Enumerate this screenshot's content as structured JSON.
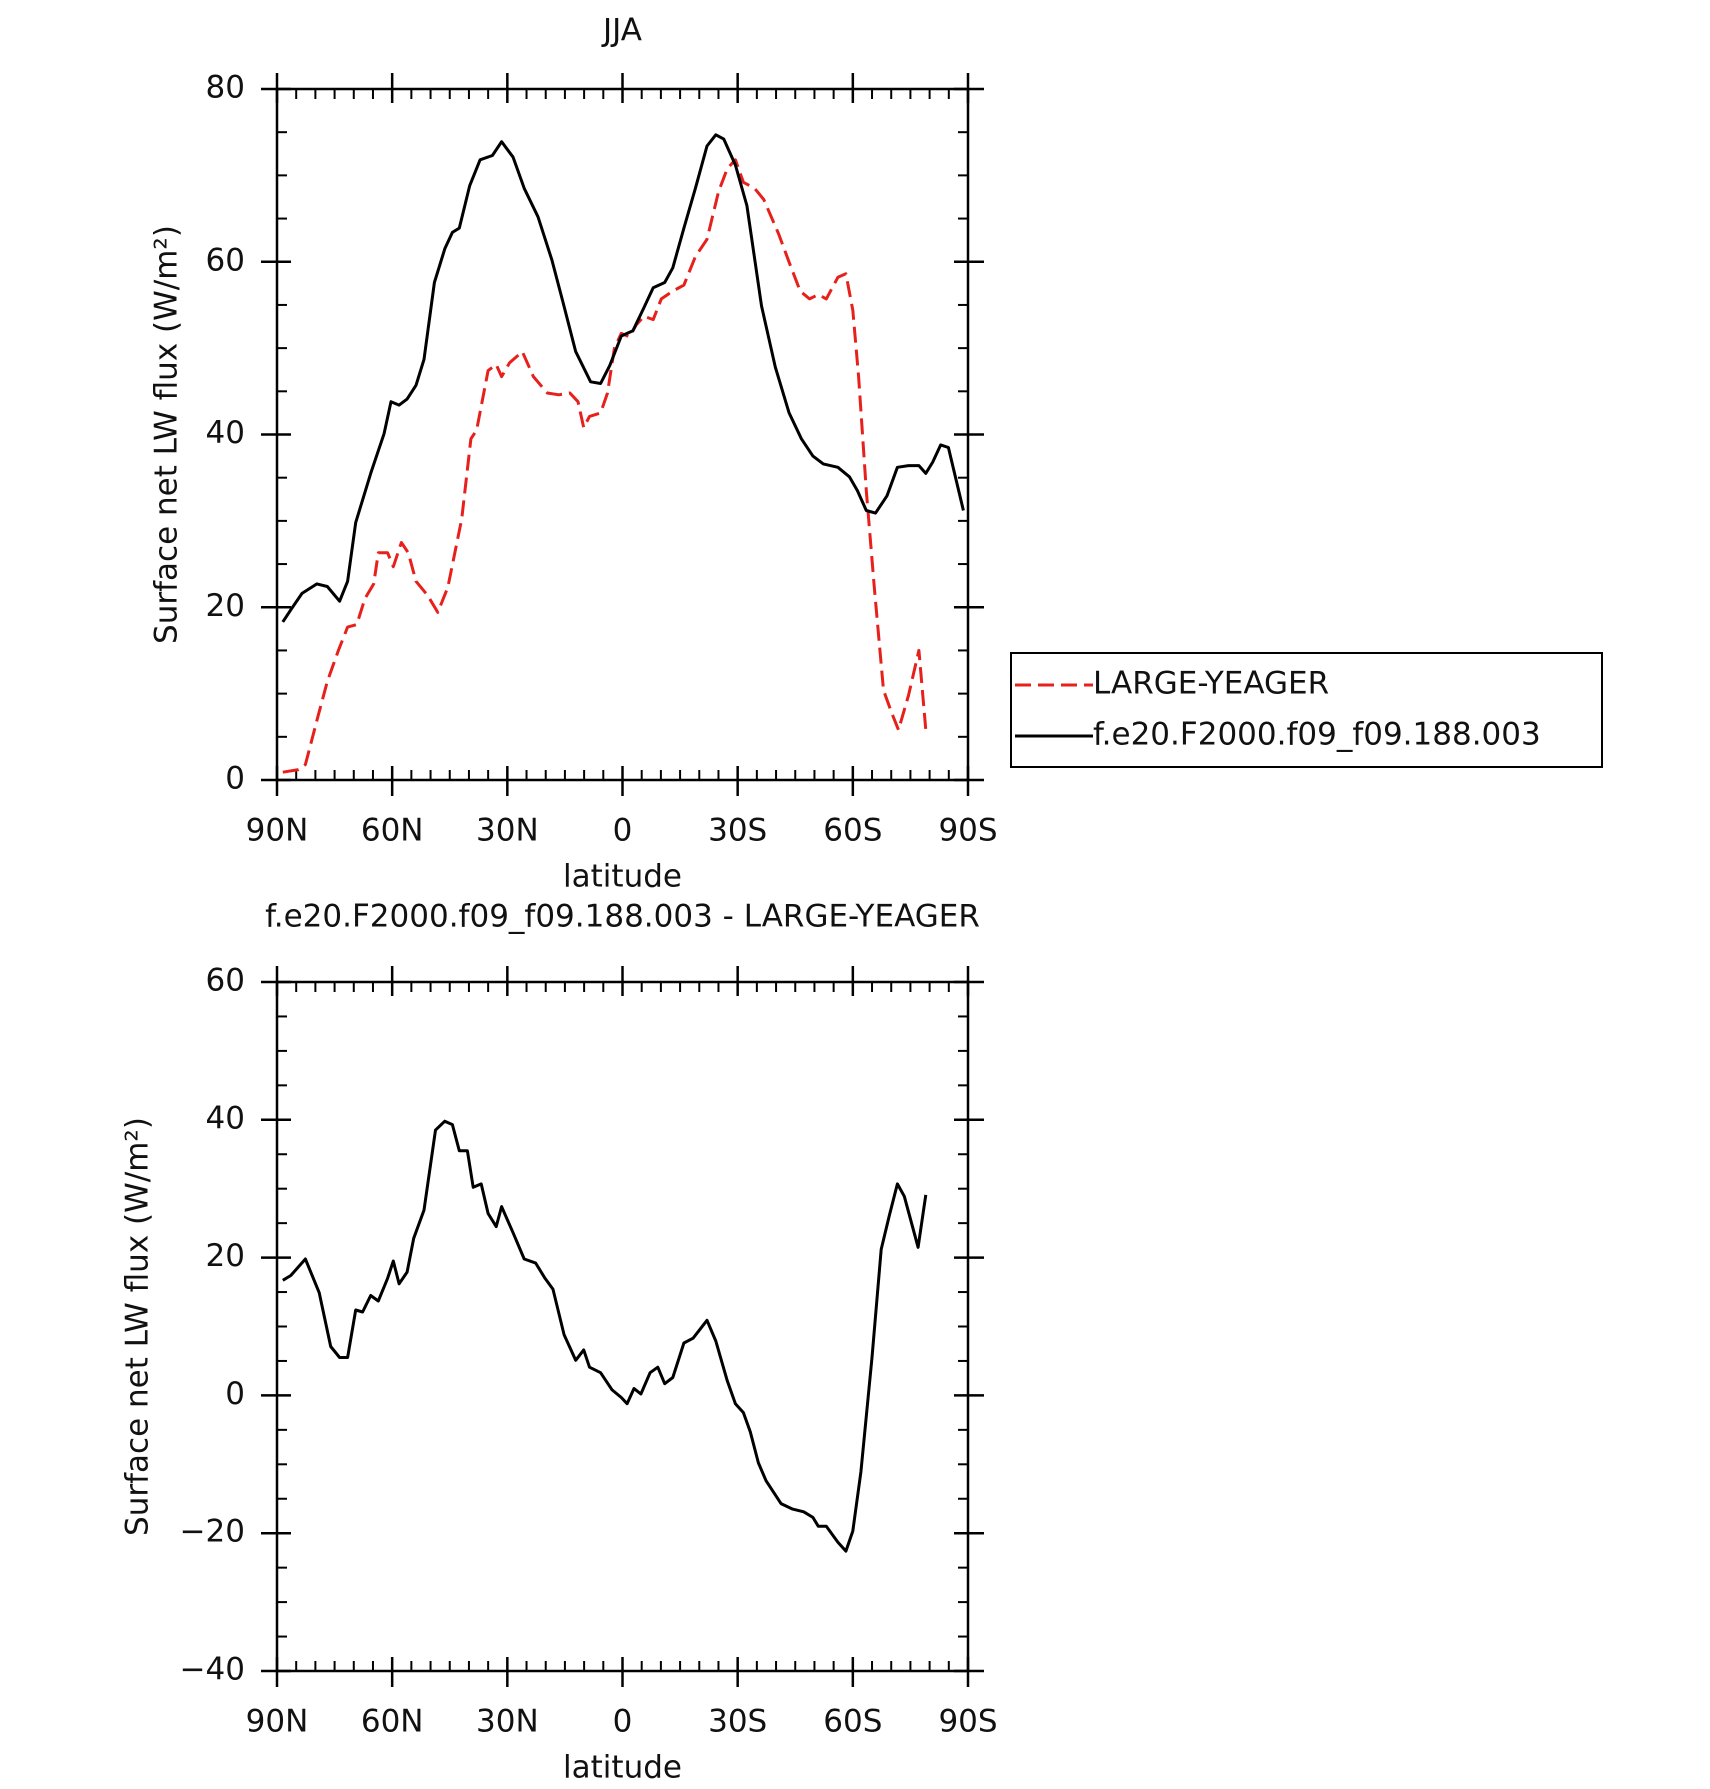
{
  "chart_data": [
    {
      "type": "line",
      "title": "JJA",
      "xlabel": "latitude",
      "ylabel": "Surface net LW flux (W/m²)",
      "xlim": [
        90,
        -90
      ],
      "xticks": [
        {
          "value": 90,
          "label": "90N"
        },
        {
          "value": 60,
          "label": "60N"
        },
        {
          "value": 30,
          "label": "30N"
        },
        0,
        {
          "value": -30,
          "label": "30S"
        },
        {
          "value": -60,
          "label": "60S"
        },
        {
          "value": -90,
          "label": "90S"
        }
      ],
      "ylim": [
        0,
        80
      ],
      "yticks": [
        0,
        20,
        40,
        60,
        80
      ],
      "legend": "outside right",
      "series": [
        {
          "name": "LARGE-YEAGER",
          "color": "#e8201c",
          "dash": true,
          "x": [
            88.5,
            84.4,
            82.6,
            79.6,
            76.9,
            74,
            71.6,
            69.2,
            67.1,
            64.8,
            63.6,
            61.2,
            59.7,
            57.6,
            55.8,
            53.8,
            50.8,
            48.1,
            45.5,
            41.9,
            39.5,
            38,
            35,
            32.9,
            31.5,
            29.4,
            26.1,
            23.2,
            19.6,
            16.6,
            13.7,
            11.6,
            10.1,
            8.6,
            5.7,
            3.9,
            2.1,
            0.3,
            -1.8,
            -3.6,
            -5.6,
            -8,
            -10.1,
            -13.1,
            -16,
            -19,
            -22,
            -25,
            -27.3,
            -29.4,
            -31.5,
            -34.4,
            -36.8,
            -40.7,
            -43.6,
            -46.3,
            -48.7,
            -51,
            -53.1,
            -56.1,
            -58.2,
            -60,
            -61.5,
            -63.5,
            -65.6,
            -68,
            -70.1,
            -71.9,
            -74.5,
            -77.2,
            -79
          ],
          "values": [
            0.9,
            1.2,
            1.8,
            6.9,
            11.4,
            15,
            17.7,
            18,
            21,
            22.7,
            26.3,
            26.3,
            24.7,
            27.5,
            26.3,
            23,
            21.4,
            19.4,
            22.3,
            30.2,
            39.5,
            40.5,
            47.4,
            48.1,
            46.7,
            48.3,
            49.6,
            46.7,
            44.8,
            44.6,
            44.8,
            43.8,
            40.8,
            42.1,
            42.5,
            44.8,
            50,
            51.7,
            51.3,
            52.7,
            53.7,
            53.3,
            55.7,
            56.6,
            57.3,
            60.6,
            62.6,
            68.1,
            70.8,
            71.8,
            69.2,
            68.5,
            67.2,
            63.2,
            59.7,
            56.6,
            55.7,
            56.2,
            55.7,
            58.2,
            58.6,
            54.4,
            46.7,
            33.5,
            22.3,
            10.4,
            7.8,
            5.8,
            9.8,
            15,
            5.8
          ]
        },
        {
          "name": "f.e20.F2000.f09_f09.188.003",
          "color": "#000000",
          "dash": false,
          "x": [
            88.5,
            86.4,
            83.5,
            79.6,
            76.9,
            73.7,
            71.6,
            69.5,
            65.6,
            62.1,
            60.3,
            58.2,
            56.1,
            53.8,
            51.7,
            49,
            46.3,
            44.3,
            42.5,
            39.8,
            37.1,
            33.9,
            31.5,
            28.5,
            25.6,
            22,
            18.4,
            15.5,
            12.2,
            8.3,
            5.7,
            3.3,
            0.3,
            -2.7,
            -5.6,
            -8,
            -11,
            -13.1,
            -16,
            -19,
            -22,
            -24.3,
            -26.4,
            -29.4,
            -32.4,
            -36.2,
            -39.8,
            -43.4,
            -46.6,
            -49.6,
            -52.3,
            -56.1,
            -59.1,
            -61.2,
            -63.5,
            -65.9,
            -68.9,
            -71.6,
            -74.5,
            -77.2,
            -79,
            -80.8,
            -82.9,
            -84.9,
            -88.8
          ],
          "values": [
            18.3,
            19.7,
            21.6,
            22.7,
            22.4,
            20.7,
            23,
            29.8,
            35.5,
            40.1,
            43.8,
            43.4,
            44.1,
            45.7,
            48.7,
            57.6,
            61.5,
            63.4,
            63.9,
            68.8,
            71.8,
            72.3,
            73.9,
            72.1,
            68.5,
            65.2,
            60.2,
            55.3,
            49.6,
            46.1,
            45.9,
            48,
            51.4,
            52,
            54.7,
            57,
            57.6,
            59.3,
            63.9,
            68.5,
            73.4,
            74.7,
            74.2,
            71.2,
            66.5,
            54.9,
            47.8,
            42.5,
            39.5,
            37.5,
            36.6,
            36.2,
            35.1,
            33.5,
            31.2,
            30.9,
            32.9,
            36.2,
            36.4,
            36.4,
            35.5,
            36.8,
            38.8,
            38.5,
            31.2
          ]
        }
      ]
    },
    {
      "type": "line",
      "title": "f.e20.F2000.f09_f09.188.003 - LARGE-YEAGER",
      "xlabel": "latitude",
      "ylabel": "Surface net LW flux (W/m²)",
      "xlim": [
        90,
        -90
      ],
      "xticks": [
        {
          "value": 90,
          "label": "90N"
        },
        {
          "value": 60,
          "label": "60N"
        },
        {
          "value": 30,
          "label": "30N"
        },
        0,
        {
          "value": -30,
          "label": "30S"
        },
        {
          "value": -60,
          "label": "60S"
        },
        {
          "value": -90,
          "label": "90S"
        }
      ],
      "ylim": [
        -40,
        60
      ],
      "yticks": [
        {
          "value": -40,
          "label": "−40"
        },
        {
          "value": -20,
          "label": "−20"
        },
        0,
        20,
        40,
        60
      ],
      "series": [
        {
          "color": "#000000",
          "dash": false,
          "x": [
            88.5,
            86.4,
            82.6,
            79,
            76,
            73.7,
            71.6,
            69.5,
            67.7,
            65.6,
            63.6,
            61.2,
            59.7,
            58.2,
            56.1,
            54.4,
            51.7,
            48.7,
            46.3,
            44.3,
            42.5,
            40.4,
            38.9,
            36.8,
            35,
            32.9,
            31.5,
            28.5,
            25.6,
            22.6,
            20.2,
            18.1,
            15.2,
            12.2,
            10.1,
            8.6,
            5.7,
            2.7,
            0.3,
            -1.2,
            -3,
            -4.8,
            -7.2,
            -9.2,
            -11,
            -13.1,
            -16,
            -18.4,
            -22,
            -24.3,
            -27.3,
            -29.4,
            -31.5,
            -33.3,
            -35.4,
            -37.4,
            -41.3,
            -44.3,
            -47.2,
            -49.6,
            -51,
            -53.1,
            -56.1,
            -58.2,
            -60,
            -62.1,
            -65,
            -67.4,
            -69.5,
            -71.6,
            -73.4,
            -77,
            -79
          ],
          "values": [
            16.7,
            17.4,
            19.8,
            14.9,
            7.1,
            5.5,
            5.5,
            12.4,
            12.1,
            14.5,
            13.7,
            17,
            19.5,
            16.2,
            17.9,
            22.8,
            26.9,
            38.5,
            39.8,
            39.3,
            35.5,
            35.5,
            30.2,
            30.7,
            26.4,
            24.5,
            27.4,
            23.6,
            19.8,
            19.2,
            17,
            15.4,
            8.8,
            5.1,
            6.6,
            4.1,
            3.3,
            0.8,
            -0.3,
            -1.2,
            1,
            0.2,
            3.3,
            4.1,
            1.7,
            2.6,
            7.6,
            8.3,
            10.9,
            7.9,
            2.1,
            -1.2,
            -2.5,
            -5.3,
            -9.8,
            -12.4,
            -15.7,
            -16.5,
            -16.9,
            -17.7,
            -19,
            -19,
            -21.3,
            -22.6,
            -19.7,
            -11.1,
            5.5,
            21.2,
            26.1,
            30.7,
            28.9,
            21.5,
            29.1
          ]
        }
      ]
    }
  ]
}
